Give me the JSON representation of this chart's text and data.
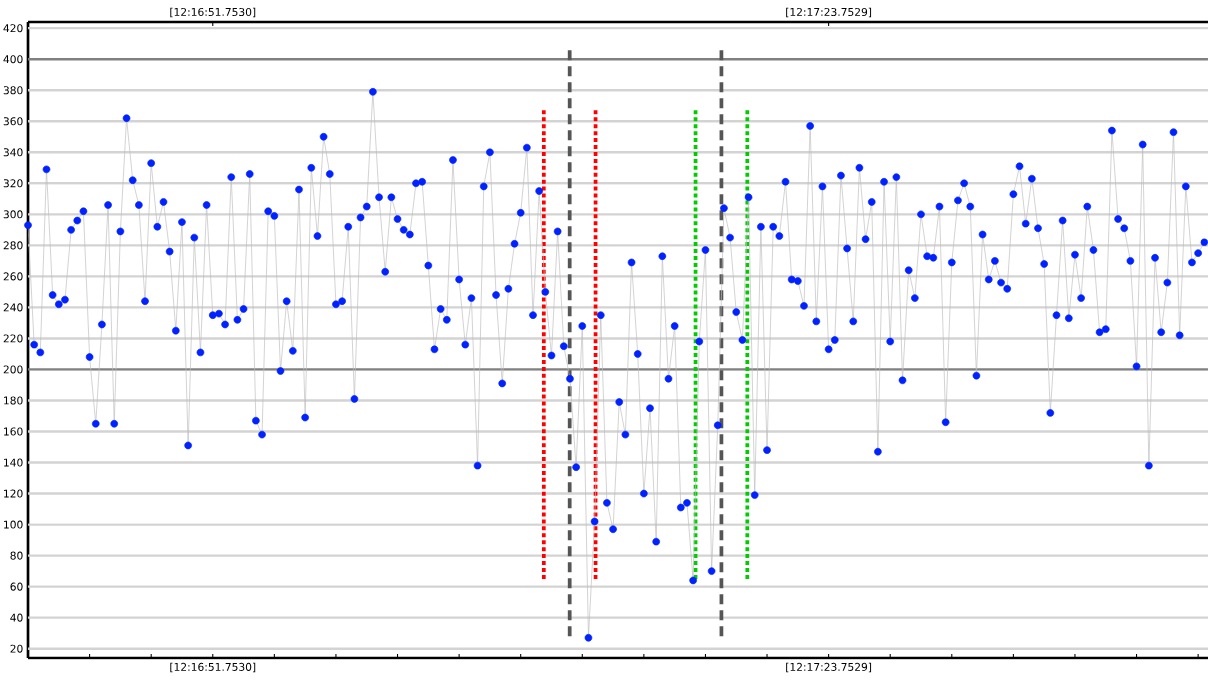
{
  "chart_data": {
    "type": "line",
    "marker": "circle",
    "grid": "y",
    "categories": [
      null,
      null,
      null,
      null,
      null,
      null,
      null,
      null,
      null,
      null,
      null,
      null,
      null,
      null,
      null,
      null,
      null,
      null,
      null,
      null,
      null,
      null,
      null,
      null,
      null,
      null,
      null,
      null,
      null,
      null,
      "[12:16:51.7530]",
      null,
      null,
      null,
      null,
      null,
      null,
      null,
      null,
      null,
      null,
      null,
      null,
      null,
      null,
      null,
      null,
      null,
      null,
      null,
      null,
      null,
      null,
      null,
      null,
      null,
      null,
      null,
      null,
      null,
      null,
      null,
      null,
      null,
      null,
      null,
      null,
      null,
      null,
      null,
      null,
      null,
      null,
      null,
      null,
      null,
      null,
      null,
      null,
      null,
      null,
      null,
      null,
      null,
      null,
      null,
      null,
      null,
      null,
      null,
      null,
      null,
      null,
      null,
      null,
      null,
      null,
      null,
      null,
      null,
      null,
      null,
      null,
      null,
      null,
      null,
      null,
      null,
      null,
      null,
      null,
      null,
      null,
      null,
      null,
      null,
      null,
      null,
      null,
      null,
      null,
      null,
      null,
      null,
      null,
      null,
      null,
      null,
      null,
      null,
      "[12:17:23.7529]",
      null,
      null,
      null,
      null,
      null,
      null,
      null,
      null,
      null,
      null,
      null,
      null,
      null,
      null,
      null,
      null,
      null,
      null,
      null,
      null,
      null,
      null,
      null,
      null,
      null,
      null,
      null,
      null,
      null,
      null,
      null,
      null,
      null,
      null,
      null,
      null,
      null,
      null,
      null,
      null,
      null,
      null,
      null,
      null,
      null,
      null,
      null,
      null,
      null,
      null,
      null,
      null,
      null,
      null,
      null,
      null,
      null,
      null,
      null,
      null,
      null
    ],
    "ylim": [
      14,
      424
    ],
    "yticks": [
      20,
      40,
      60,
      80,
      100,
      120,
      140,
      160,
      180,
      200,
      220,
      240,
      260,
      280,
      300,
      320,
      340,
      360,
      380,
      400,
      420
    ],
    "series": [
      {
        "color": "#0022ff",
        "values": [
          293,
          216,
          211,
          329,
          248,
          242,
          245,
          290,
          296,
          302,
          208,
          165,
          229,
          306,
          165,
          289,
          362,
          322,
          306,
          244,
          333,
          292,
          308,
          276,
          225,
          295,
          151,
          285,
          211,
          306,
          235,
          236,
          229,
          324,
          232,
          239,
          326,
          167,
          158,
          302,
          299,
          199,
          244,
          212,
          316,
          169,
          330,
          286,
          350,
          326,
          242,
          244,
          292,
          181,
          298,
          305,
          379,
          311,
          263,
          311,
          297,
          290,
          287,
          320,
          321,
          267,
          213,
          239,
          232,
          335,
          258,
          216,
          246,
          138,
          318,
          340,
          248,
          191,
          252,
          281,
          301,
          343,
          235,
          315,
          250,
          209,
          289,
          215,
          194,
          137,
          228,
          27,
          102,
          235,
          114,
          97,
          179,
          158,
          269,
          210,
          120,
          175,
          89,
          273,
          194,
          228,
          111,
          114,
          64,
          218,
          277,
          70,
          164,
          304,
          285,
          237,
          219,
          311,
          119,
          292,
          148,
          292,
          286,
          321,
          258,
          257,
          241,
          357,
          231,
          318,
          213,
          219,
          325,
          278,
          231,
          330,
          284,
          308,
          147,
          321,
          218,
          324,
          193,
          264,
          246,
          300,
          273,
          272,
          305,
          166,
          269,
          309,
          320,
          305,
          196,
          287,
          258,
          270,
          256,
          252,
          313,
          331,
          294,
          323,
          291,
          268,
          172,
          235,
          296,
          233,
          274,
          246,
          305,
          277,
          224,
          226,
          354,
          297,
          291,
          270,
          202,
          345,
          138,
          272,
          224,
          256,
          353,
          222,
          318,
          269,
          275,
          282
        ]
      }
    ]
  }
}
